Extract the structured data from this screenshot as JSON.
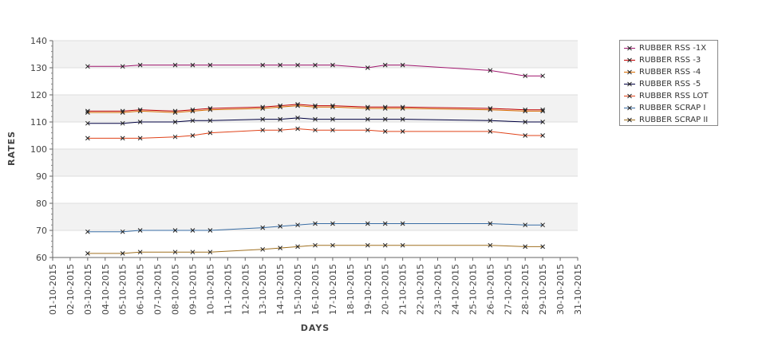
{
  "chart_data": {
    "type": "line",
    "xlabel": "DAYS",
    "ylabel": "RATES",
    "ylim": [
      60,
      140
    ],
    "yticks": [
      60,
      70,
      80,
      90,
      100,
      110,
      120,
      130,
      140
    ],
    "grid": "horizontal bands",
    "legend_position": "right",
    "categories": [
      "01-10-2015",
      "02-10-2015",
      "03-10-2015",
      "04-10-2015",
      "05-10-2015",
      "06-10-2015",
      "07-10-2015",
      "08-10-2015",
      "09-10-2015",
      "10-10-2015",
      "11-10-2015",
      "12-10-2015",
      "13-10-2015",
      "14-10-2015",
      "15-10-2015",
      "16-10-2015",
      "17-10-2015",
      "18-10-2015",
      "19-10-2015",
      "20-10-2015",
      "21-10-2015",
      "22-10-2015",
      "23-10-2015",
      "24-10-2015",
      "25-10-2015",
      "26-10-2015",
      "27-10-2015",
      "28-10-2015",
      "29-10-2015",
      "30-10-2015",
      "31-10-2015"
    ],
    "x": [
      "03-10-2015",
      "05-10-2015",
      "06-10-2015",
      "08-10-2015",
      "09-10-2015",
      "10-10-2015",
      "13-10-2015",
      "14-10-2015",
      "15-10-2015",
      "16-10-2015",
      "17-10-2015",
      "19-10-2015",
      "20-10-2015",
      "21-10-2015",
      "26-10-2015",
      "28-10-2015",
      "29-10-2015"
    ],
    "series": [
      {
        "name": "RUBBER RSS -1X",
        "color": "#a0176e",
        "values": [
          130.5,
          130.5,
          131,
          131,
          131,
          131,
          131,
          131,
          131,
          131,
          131,
          130,
          131,
          131,
          129,
          127,
          127
        ]
      },
      {
        "name": "RUBBER RSS -3",
        "color": "#c00000",
        "values": [
          114,
          114,
          114.5,
          114,
          114.5,
          115,
          115.5,
          116,
          116.5,
          116,
          116,
          115.5,
          115.5,
          115.5,
          115,
          114.5,
          114.5
        ]
      },
      {
        "name": "RUBBER RSS -4",
        "color": "#d96b00",
        "values": [
          113.5,
          113.5,
          114,
          113.5,
          114,
          114.5,
          115,
          115.5,
          116,
          115.5,
          115.5,
          115,
          115,
          115,
          114.5,
          114,
          114
        ]
      },
      {
        "name": "RUBBER RSS -5",
        "color": "#000040",
        "values": [
          109.5,
          109.5,
          110,
          110,
          110.5,
          110.5,
          111,
          111,
          111.5,
          111,
          111,
          111,
          111,
          111,
          110.5,
          110,
          110
        ]
      },
      {
        "name": "RUBBER RSS LOT",
        "color": "#e0431a",
        "values": [
          104,
          104,
          104,
          104.5,
          105,
          106,
          107,
          107,
          107.5,
          107,
          107,
          107,
          106.5,
          106.5,
          106.5,
          105,
          105
        ]
      },
      {
        "name": "RUBBER SCRAP I",
        "color": "#3a6ea5",
        "values": [
          69.5,
          69.5,
          70,
          70,
          70,
          70,
          71,
          71.5,
          72,
          72.5,
          72.5,
          72.5,
          72.5,
          72.5,
          72.5,
          72,
          72
        ]
      },
      {
        "name": "RUBBER SCRAP II",
        "color": "#a07020",
        "values": [
          61.5,
          61.5,
          62,
          62,
          62,
          62,
          63,
          63.5,
          64,
          64.5,
          64.5,
          64.5,
          64.5,
          64.5,
          64.5,
          64,
          64
        ]
      }
    ]
  }
}
